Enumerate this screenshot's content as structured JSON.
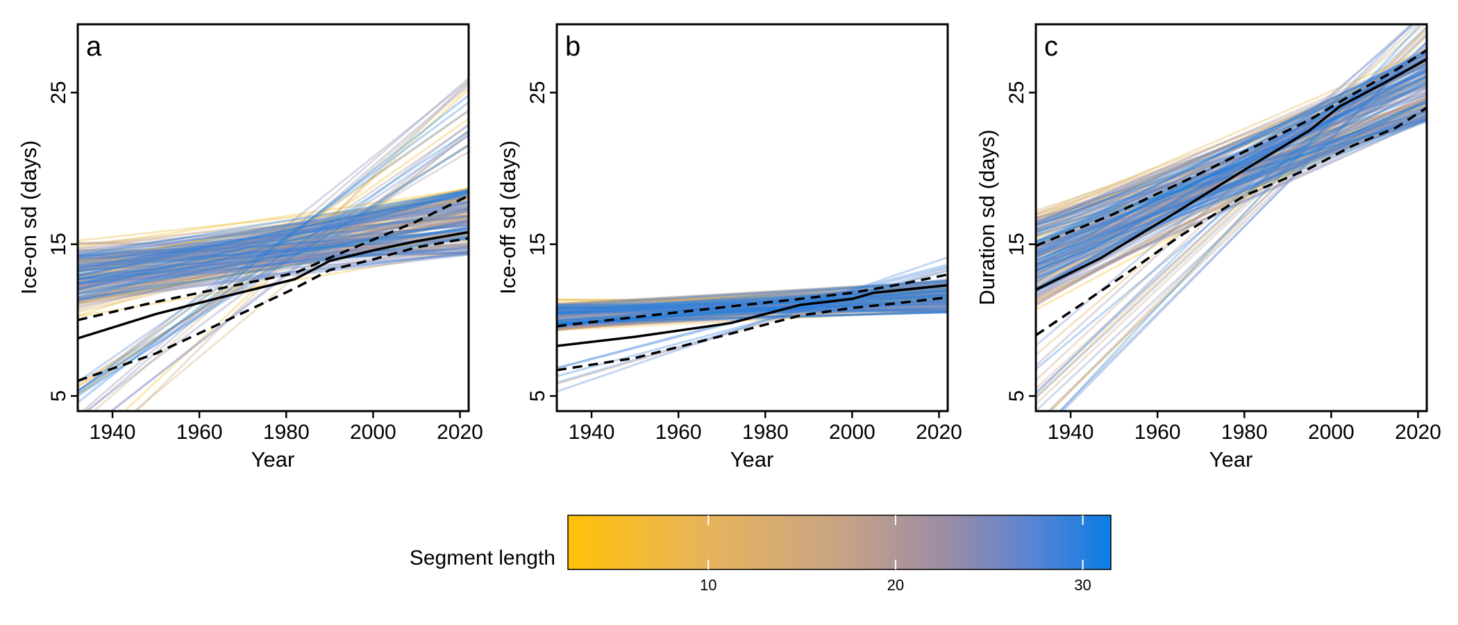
{
  "chart_data": [
    {
      "type": "line",
      "panel_label": "a",
      "xlabel": "Year",
      "ylabel": "Ice-on sd (days)",
      "xlim": [
        1932,
        2022
      ],
      "ylim": [
        4,
        29.5
      ],
      "x_ticks": [
        1940,
        1960,
        1980,
        2000,
        2020
      ],
      "y_ticks": [
        5,
        15,
        25
      ],
      "grid": false,
      "mean": {
        "x": [
          1932,
          1950,
          1965,
          1982,
          1990,
          2000,
          2010,
          2022
        ],
        "y": [
          8.8,
          10.4,
          11.5,
          12.7,
          13.9,
          14.6,
          15.2,
          15.8
        ]
      },
      "upper": {
        "x": [
          1932,
          1950,
          1965,
          1982,
          1990,
          2000,
          2010,
          2022
        ],
        "y": [
          10.0,
          11.2,
          12.1,
          13.1,
          14.1,
          15.3,
          16.5,
          18.2
        ]
      },
      "lower": {
        "x": [
          1932,
          1950,
          1965,
          1982,
          1990,
          2000,
          2010,
          2022
        ],
        "y": [
          6.0,
          7.8,
          9.8,
          12.1,
          13.3,
          14.0,
          14.8,
          15.4
        ]
      },
      "segments": {
        "seed": 11,
        "count": 170,
        "start_mean": 12.8,
        "start_spread": 2.3,
        "end_mean": 16.5,
        "end_spread": 2.2,
        "pivot_year": 1980,
        "steep_count": 22,
        "steep_start": [
          -1,
          6
        ],
        "steep_end": [
          21,
          26
        ]
      }
    },
    {
      "type": "line",
      "panel_label": "b",
      "xlabel": "Year",
      "ylabel": "Ice-off sd (days)",
      "xlim": [
        1932,
        2022
      ],
      "ylim": [
        4,
        29.5
      ],
      "x_ticks": [
        1940,
        1960,
        1980,
        2000,
        2020
      ],
      "y_ticks": [
        5,
        15,
        25
      ],
      "grid": false,
      "mean": {
        "x": [
          1932,
          1950,
          1972,
          1988,
          2000,
          2005,
          2022
        ],
        "y": [
          8.3,
          8.9,
          9.8,
          11.0,
          11.4,
          11.8,
          12.3
        ]
      },
      "upper": {
        "x": [
          1932,
          1950,
          1972,
          1988,
          2000,
          2010,
          2022
        ],
        "y": [
          9.6,
          10.2,
          10.9,
          11.4,
          11.8,
          12.3,
          13.0
        ]
      },
      "lower": {
        "x": [
          1932,
          1950,
          1972,
          1988,
          2000,
          2010,
          2022
        ],
        "y": [
          6.7,
          7.5,
          9.1,
          10.3,
          10.8,
          11.1,
          11.5
        ]
      },
      "segments": {
        "seed": 23,
        "count": 150,
        "start_mean": 10.3,
        "start_spread": 1.0,
        "end_mean": 11.6,
        "end_spread": 1.1,
        "pivot_year": 1980,
        "steep_count": 6,
        "steep_start": [
          5.2,
          7.5
        ],
        "steep_end": [
          13.0,
          14.2
        ]
      }
    },
    {
      "type": "line",
      "panel_label": "c",
      "xlabel": "Year",
      "ylabel": "Duration sd (days)",
      "xlim": [
        1932,
        2022
      ],
      "ylim": [
        4,
        29.5
      ],
      "x_ticks": [
        1940,
        1960,
        1980,
        2000,
        2020
      ],
      "y_ticks": [
        5,
        15,
        25
      ],
      "grid": false,
      "mean": {
        "x": [
          1932,
          1947,
          1962,
          1980,
          1995,
          2002,
          2012,
          2022
        ],
        "y": [
          12.0,
          14.1,
          16.7,
          19.9,
          22.5,
          24.1,
          25.6,
          27.2
        ]
      },
      "upper": {
        "x": [
          1932,
          1950,
          1965,
          1980,
          1995,
          2005,
          2015,
          2022
        ],
        "y": [
          14.9,
          17.0,
          19.0,
          21.1,
          23.2,
          24.9,
          26.5,
          27.8
        ]
      },
      "lower": {
        "x": [
          1932,
          1950,
          1965,
          1980,
          1995,
          2005,
          2015,
          2022
        ],
        "y": [
          9.0,
          12.5,
          15.5,
          18.2,
          20.0,
          21.5,
          22.7,
          24.0
        ]
      },
      "segments": {
        "seed": 37,
        "count": 170,
        "start_mean": 14.0,
        "start_spread": 3.2,
        "end_mean": 25.5,
        "end_spread": 2.4,
        "pivot_year": 1980,
        "steep_count": 18,
        "steep_start": [
          2.0,
          9.0
        ],
        "steep_end": [
          28.0,
          30.5
        ]
      }
    }
  ],
  "colorbar": {
    "title": "Segment length",
    "min": 2.5,
    "max": 31.5,
    "ticks": [
      10,
      20,
      30
    ],
    "colors": [
      "#FFC107",
      "#C8A484",
      "#9A8CA6",
      "#5C84D2",
      "#0A7DE3"
    ]
  }
}
